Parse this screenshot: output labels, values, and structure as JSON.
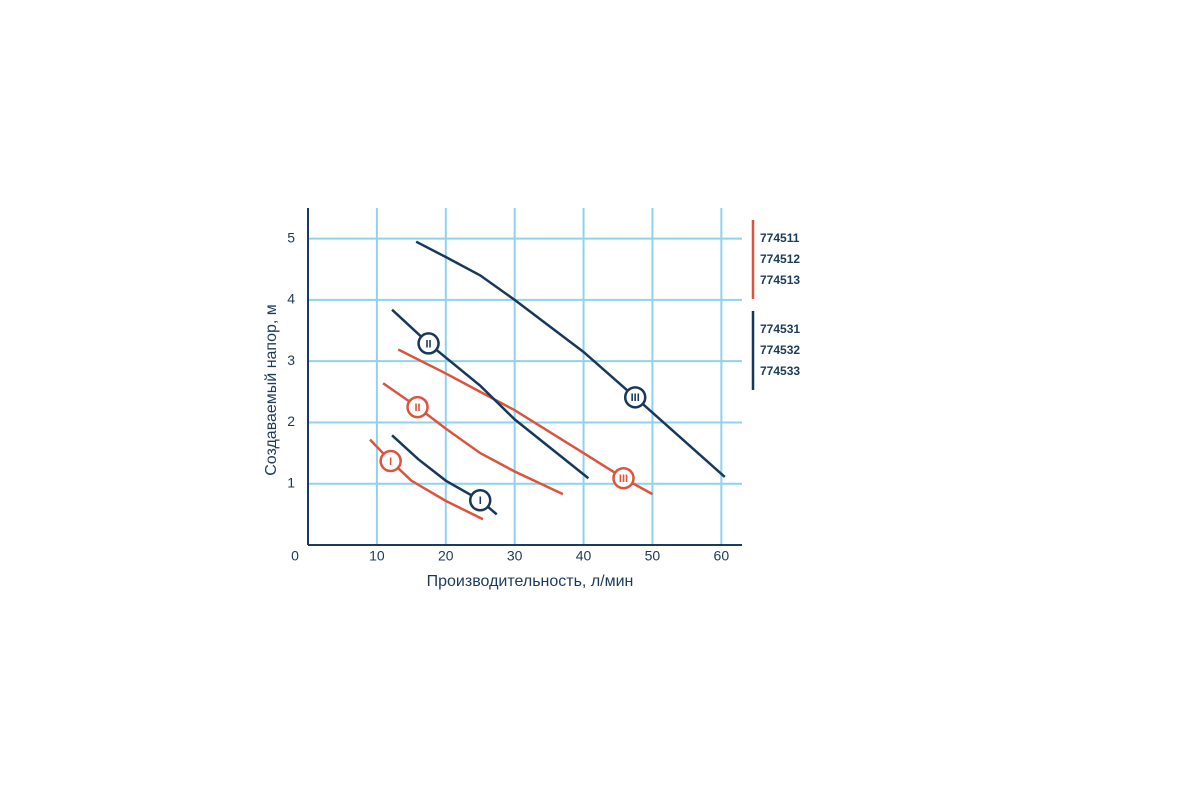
{
  "chart_data": {
    "type": "line",
    "xlabel": "Производительность, л/мин",
    "ylabel": "Создаваемый напор, м",
    "xlim": [
      0,
      63
    ],
    "ylim": [
      0,
      5.5
    ],
    "xticks": [
      0,
      10,
      20,
      30,
      40,
      50,
      60
    ],
    "yticks": [
      1,
      2,
      3,
      4,
      5
    ],
    "grid": true,
    "grid_color": "#8fd3ea",
    "axis_color": "#1c3a5a",
    "series": [
      {
        "name": "774511",
        "color": "#d9553f",
        "marker_label": "I",
        "x": [
          9,
          12,
          15,
          20,
          25.4
        ],
        "values": [
          1.72,
          1.37,
          1.05,
          0.72,
          0.42
        ]
      },
      {
        "name": "774512",
        "color": "#d9553f",
        "marker_label": "II",
        "x": [
          10.9,
          15.9,
          20,
          25,
          30,
          37
        ],
        "values": [
          2.64,
          2.25,
          1.9,
          1.5,
          1.2,
          0.83
        ]
      },
      {
        "name": "774513",
        "color": "#d9553f",
        "marker_label": "III",
        "x": [
          13.1,
          20,
          30,
          40,
          45.8,
          50
        ],
        "values": [
          3.19,
          2.8,
          2.2,
          1.5,
          1.09,
          0.83
        ]
      },
      {
        "name": "774531",
        "color": "#17385a",
        "marker_label": "I",
        "x": [
          12.2,
          16,
          20,
          25,
          27.4
        ],
        "values": [
          1.79,
          1.4,
          1.05,
          0.73,
          0.5
        ]
      },
      {
        "name": "774532",
        "color": "#17385a",
        "marker_label": "II",
        "x": [
          12.2,
          17.5,
          25,
          30,
          40.7
        ],
        "values": [
          3.84,
          3.29,
          2.6,
          2.05,
          1.09
        ]
      },
      {
        "name": "774533",
        "color": "#17385a",
        "marker_label": "III",
        "x": [
          15.7,
          20,
          25,
          30,
          40,
          47.5,
          60.5
        ],
        "values": [
          4.95,
          4.7,
          4.4,
          4.0,
          3.15,
          2.41,
          1.11
        ]
      }
    ]
  }
}
